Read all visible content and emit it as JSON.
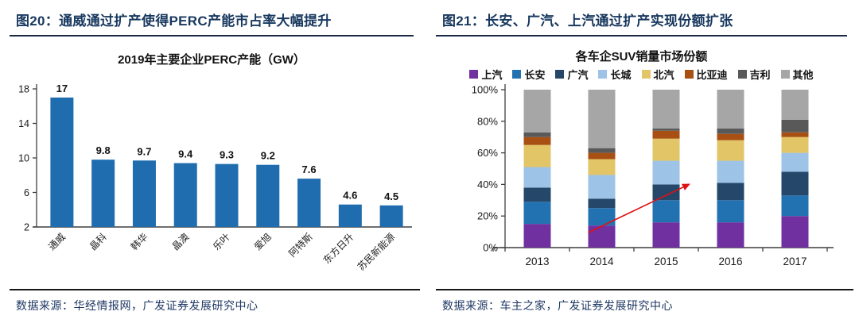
{
  "colors": {
    "title_navy": "#17375E",
    "axis": "#3f3f3f",
    "bar_blue": "#1F6DAE",
    "arrow_red": "#DE1212",
    "value_label": "#111111"
  },
  "panels": {
    "left": {
      "figure_label": "图20：通威通过扩产使得PERC产能市占率大幅提升",
      "source": "数据来源：华经情报网，广发证券发展研究中心"
    },
    "right": {
      "figure_label": "图21：长安、广汽、上汽通过扩产实现份额扩张",
      "source": "数据来源：车主之家，广发证券发展研究中心"
    }
  },
  "chart_data": [
    {
      "type": "bar",
      "title": "2019年主要企业PERC产能（GW）",
      "categories": [
        "通威",
        "晶科",
        "韩华",
        "晶澳",
        "乐叶",
        "爱旭",
        "阿特斯",
        "东方日升",
        "苏民新能源"
      ],
      "values": [
        17,
        9.8,
        9.7,
        9.4,
        9.3,
        9.2,
        7.6,
        4.6,
        4.5
      ],
      "value_labels": [
        "17",
        "9.8",
        "9.7",
        "9.4",
        "9.3",
        "9.2",
        "7.6",
        "4.6",
        "4.5"
      ],
      "ylim": [
        2,
        18
      ],
      "yticks": [
        2,
        6,
        10,
        14,
        18
      ],
      "grid": false,
      "bar_color": "#1F6DAE",
      "xlabel": "",
      "ylabel": ""
    },
    {
      "type": "stacked-bar",
      "title": "各车企SUV销量市场份额",
      "categories": [
        "2013",
        "2014",
        "2015",
        "2016",
        "2017"
      ],
      "series": [
        {
          "name": "上汽",
          "color": "#7030A0",
          "values": [
            15,
            14,
            16,
            16,
            20
          ]
        },
        {
          "name": "长安",
          "color": "#2272B2",
          "values": [
            14,
            11,
            14,
            14,
            13
          ]
        },
        {
          "name": "广汽",
          "color": "#25476A",
          "values": [
            9,
            6,
            10,
            11,
            15
          ]
        },
        {
          "name": "长城",
          "color": "#9DC3E6",
          "values": [
            13,
            15,
            15,
            14,
            12
          ]
        },
        {
          "name": "北汽",
          "color": "#E2C566",
          "values": [
            14,
            10,
            14,
            13,
            10
          ]
        },
        {
          "name": "比亚迪",
          "color": "#A85014",
          "values": [
            5,
            4,
            5,
            4,
            3
          ]
        },
        {
          "name": "吉利",
          "color": "#595959",
          "values": [
            3,
            3,
            1.5,
            3.5,
            8
          ]
        },
        {
          "name": "其他",
          "color": "#A6A6A6",
          "values": [
            27,
            37,
            24.5,
            24.5,
            19
          ]
        }
      ],
      "ylim": [
        0,
        100
      ],
      "yticks": [
        0,
        20,
        40,
        60,
        80,
        100
      ],
      "ytick_suffix": "%",
      "grid": false,
      "legend_position": "top",
      "annotation": {
        "type": "arrow",
        "color": "#DE1212",
        "from": {
          "category": "2014",
          "value_pct": 9.5
        },
        "to": {
          "category_x": 2015.65,
          "value_pct": 40
        }
      }
    }
  ]
}
